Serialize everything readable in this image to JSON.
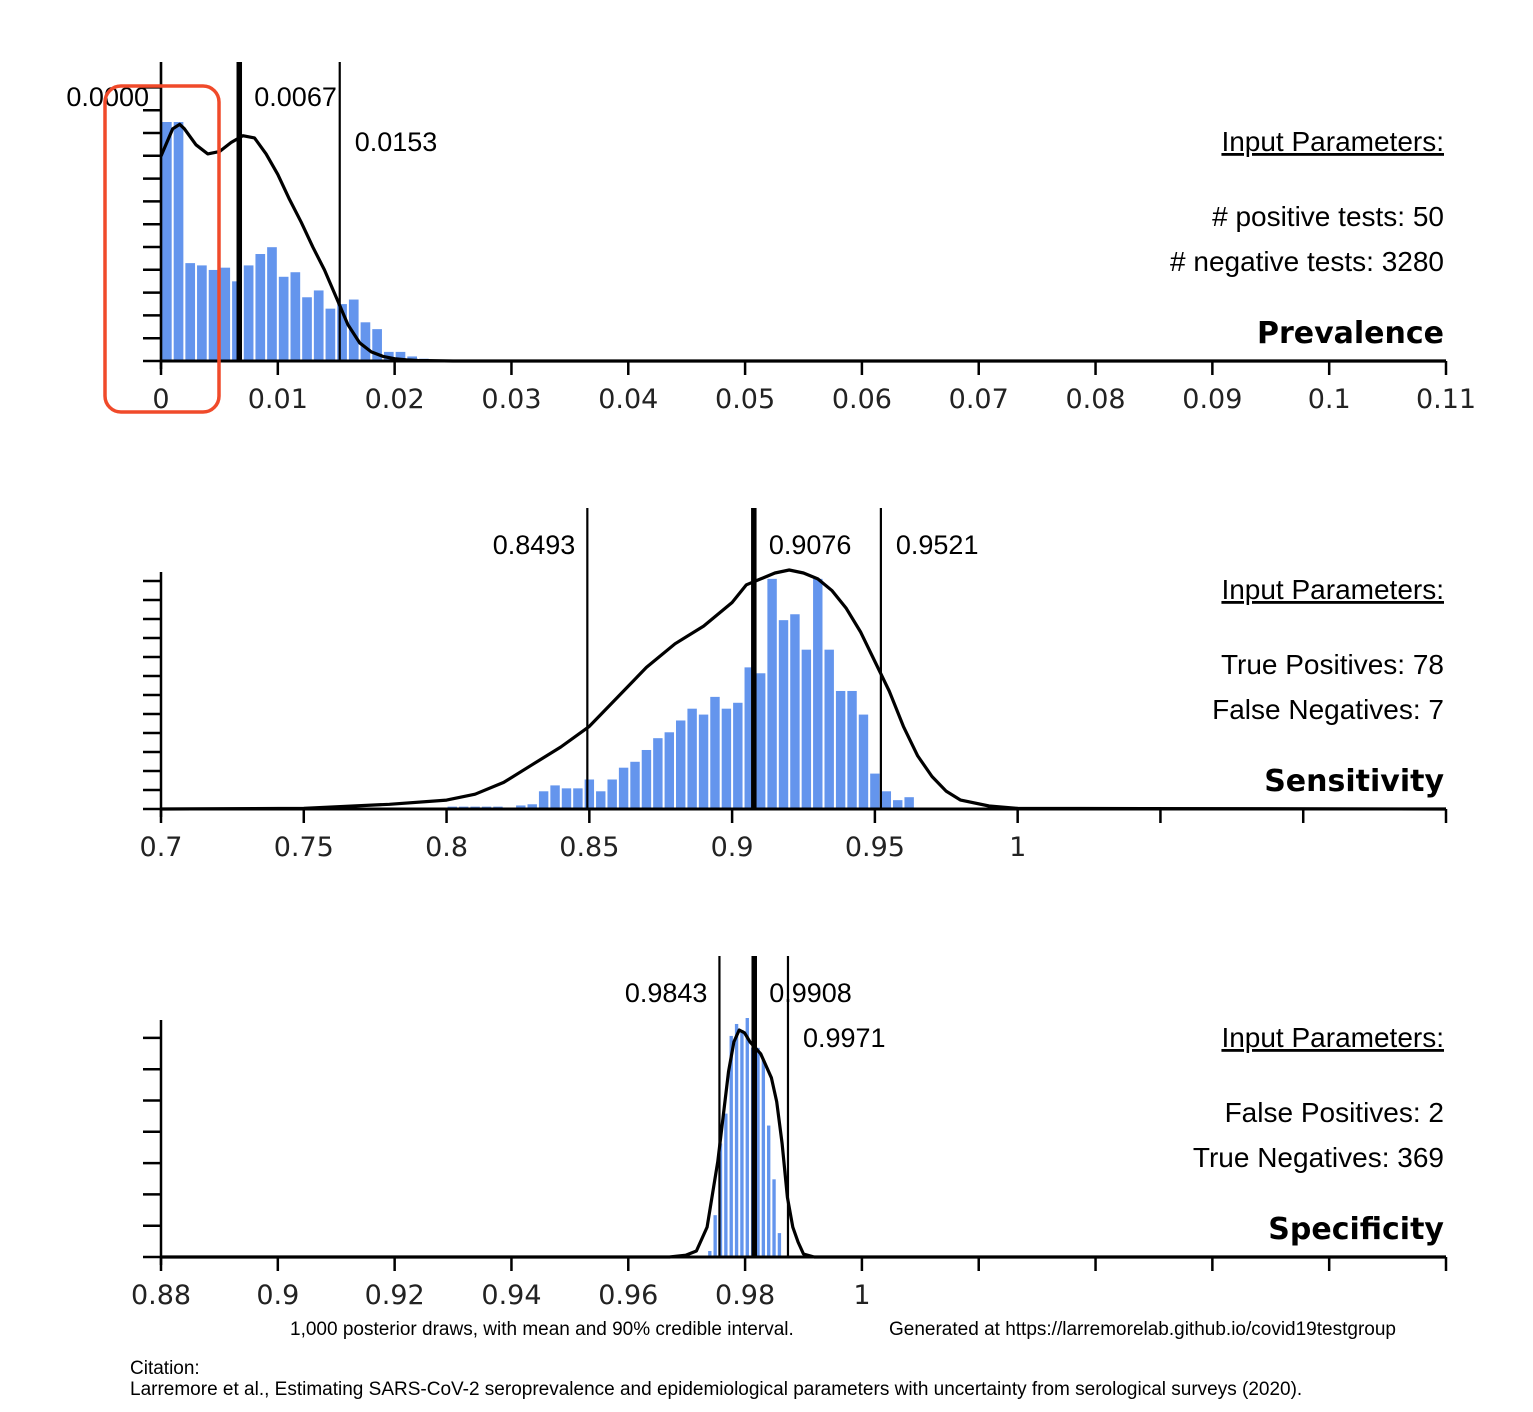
{
  "footer": {
    "caption": "1,000 posterior draws, with mean and 90% credible interval.",
    "generated": "Generated at https://larremorelab.github.io/covid19testgroup",
    "citation_label": "Citation:",
    "citation_text": "Larremore et al., Estimating SARS-CoV-2 seroprevalence and epidemiological parameters with uncertainty from serological surveys (2020)."
  },
  "colors": {
    "bars": "#6495ed",
    "lines": "#000000",
    "highlight": "#f04a2a"
  },
  "chart_data": [
    {
      "type": "bar",
      "title": "Prevalence",
      "params_heading": "Input Parameters:",
      "params": [
        "# positive tests: 50",
        "# negative tests: 3280"
      ],
      "xlim": [
        0,
        0.11
      ],
      "xticks": [
        "0",
        "0.01",
        "0.02",
        "0.03",
        "0.04",
        "0.05",
        "0.06",
        "0.07",
        "0.08",
        "0.09",
        "0.1",
        "0.11"
      ],
      "bin_start": 0,
      "bin_width": 0.001,
      "counts": [
        105,
        105,
        43,
        42,
        40,
        41,
        35,
        42,
        47,
        50,
        37,
        39,
        28,
        31,
        23,
        25,
        27,
        17,
        14,
        4,
        4,
        2,
        1,
        0.5
      ],
      "curve": {
        "x": [
          0,
          0.001,
          0.0016,
          0.002,
          0.003,
          0.004,
          0.005,
          0.006,
          0.007,
          0.008,
          0.009,
          0.01,
          0.011,
          0.012,
          0.013,
          0.014,
          0.015,
          0.016,
          0.017,
          0.018,
          0.019,
          0.02,
          0.021,
          0.022,
          0.025,
          0.11
        ],
        "y": [
          90,
          102,
          104,
          102,
          95,
          91,
          92,
          96,
          99,
          98,
          91,
          82,
          71,
          61,
          50,
          40,
          28,
          16,
          8,
          4,
          2,
          1,
          0.5,
          0.2,
          0,
          0
        ]
      },
      "ci": {
        "lower": 0.0,
        "mean": 0.0067,
        "upper": 0.0153
      },
      "ci_labels": [
        "0.0000",
        "0.0067",
        "0.0153"
      ],
      "highlight_box": "x from 0 to 0.005"
    },
    {
      "type": "bar",
      "title": "Sensitivity",
      "params_heading": "Input Parameters:",
      "params": [
        "True Positives: 78",
        "False Negatives: 7"
      ],
      "xlim": [
        0.7,
        1.15
      ],
      "xticks": [
        "0.7",
        "0.75",
        "0.8",
        "0.85",
        "0.9",
        "0.95",
        "1",
        "",
        "",
        ""
      ],
      "bin_start": 0.8,
      "bin_width": 0.004,
      "counts": [
        0.4,
        0.4,
        0.4,
        0.4,
        0.4,
        0,
        0.6,
        0.8,
        3,
        4,
        3.5,
        3.5,
        5,
        3,
        5,
        7,
        8,
        10,
        12,
        13,
        15,
        17,
        16,
        19,
        17,
        18,
        24,
        23,
        39,
        32,
        33,
        27,
        39,
        27,
        20,
        20,
        16,
        6,
        3,
        1.5,
        2
      ],
      "curve": {
        "x": [
          0.7,
          0.75,
          0.78,
          0.8,
          0.81,
          0.82,
          0.83,
          0.84,
          0.85,
          0.86,
          0.87,
          0.88,
          0.89,
          0.9,
          0.905,
          0.91,
          0.915,
          0.92,
          0.925,
          0.93,
          0.935,
          0.94,
          0.945,
          0.95,
          0.955,
          0.96,
          0.965,
          0.97,
          0.975,
          0.98,
          0.99,
          1.0,
          1.15
        ],
        "y": [
          0,
          0.1,
          0.8,
          1.5,
          2.5,
          4.5,
          7.5,
          10.5,
          14,
          19,
          24,
          28,
          31,
          35,
          38,
          39,
          40,
          40.5,
          40,
          39,
          37,
          34,
          30,
          25,
          20,
          14,
          9,
          5.5,
          3,
          1.5,
          0.5,
          0.1,
          0
        ]
      },
      "ci": {
        "lower": 0.8493,
        "mean": 0.9076,
        "upper": 0.9521
      },
      "ci_labels": [
        "0.8493",
        "0.9076",
        "0.9521"
      ]
    },
    {
      "type": "bar",
      "title": "Specificity",
      "params_heading": "Input Parameters:",
      "params": [
        "False Positives: 2",
        "True Negatives: 369"
      ],
      "xlim": [
        0.88,
        1.12
      ],
      "xticks": [
        "0.88",
        "0.9",
        "0.92",
        "0.94",
        "0.96",
        "0.98",
        "1",
        "",
        "",
        "",
        "",
        ""
      ],
      "bin_start": 0.982,
      "bin_width": 0.001,
      "counts": [
        1,
        7,
        19,
        24,
        37,
        39,
        38,
        40,
        35,
        35,
        33,
        22,
        13,
        4
      ],
      "curve": {
        "x": [
          0.88,
          0.975,
          0.978,
          0.98,
          0.982,
          0.984,
          0.986,
          0.987,
          0.988,
          0.989,
          0.99,
          0.992,
          0.994,
          0.995,
          0.996,
          0.997,
          0.998,
          0.999,
          1.0,
          1.002,
          1.12
        ],
        "y": [
          0,
          0,
          0.3,
          1,
          5,
          16,
          31,
          36,
          38,
          37.5,
          36,
          34,
          30,
          26,
          19,
          10,
          5,
          2.5,
          0.5,
          0,
          0
        ]
      },
      "ci": {
        "lower": 0.9843,
        "mean": 0.9908,
        "upper": 0.9971
      },
      "ci_labels": [
        "0.9843",
        "0.9908",
        "0.9971"
      ]
    }
  ]
}
